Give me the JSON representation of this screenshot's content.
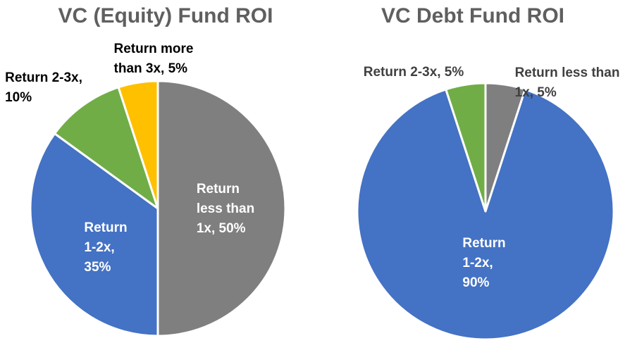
{
  "chart_data": [
    {
      "type": "pie",
      "title": "VC (Equity) Fund ROI",
      "slices": [
        {
          "label": "Return less than 1x, 50%",
          "lines": [
            "Return",
            "less than",
            "1x, 50%"
          ],
          "value": 50,
          "color": "#7f7f7f",
          "label_color": "#ffffff"
        },
        {
          "label": "Return 1-2x, 35%",
          "lines": [
            "Return",
            "1-2x,",
            "35%"
          ],
          "value": 35,
          "color": "#4472c4",
          "label_color": "#ffffff"
        },
        {
          "label": "Return 2-3x, 10%",
          "lines": [
            "Return 2-3x,",
            "10%"
          ],
          "value": 10,
          "color": "#70ad47",
          "label_color": "#000000"
        },
        {
          "label": "Return more than 3x, 5%",
          "lines": [
            "Return more",
            "than 3x, 5%"
          ],
          "value": 5,
          "color": "#ffc000",
          "label_color": "#000000"
        }
      ]
    },
    {
      "type": "pie",
      "title": "VC Debt Fund ROI",
      "slices": [
        {
          "label": "Return less than 1x, 5%",
          "lines": [
            "Return less than",
            "1x, 5%"
          ],
          "value": 5,
          "color": "#7f7f7f",
          "label_color": "#404040"
        },
        {
          "label": "Return 1-2x, 90%",
          "lines": [
            "Return",
            "1-2x,",
            "90%"
          ],
          "value": 90,
          "color": "#4472c4",
          "label_color": "#ffffff"
        },
        {
          "label": "Return 2-3x, 5%",
          "lines": [
            "Return 2-3x, 5%"
          ],
          "value": 5,
          "color": "#70ad47",
          "label_color": "#404040"
        }
      ]
    }
  ]
}
